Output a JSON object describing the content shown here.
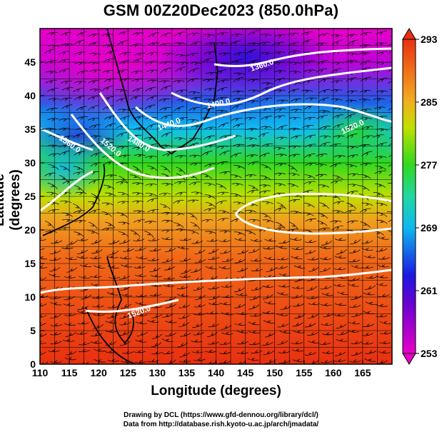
{
  "title": "GSM 00Z20Dec2023 (850.0hPa)",
  "xlabel": "Longitude (degrees)",
  "ylabel": "Latitude  (degrees)",
  "credit_line1": "Drawing by DCL (https://www.gfd-dennou.org/library/dcl/)",
  "credit_line2": "Data from http://database.rish.kyoto-u.ac.jp/arch/jmadata/",
  "x_ticks": [
    "110",
    "115",
    "120",
    "125",
    "130",
    "135",
    "140",
    "145",
    "150",
    "155",
    "160",
    "165"
  ],
  "y_ticks": [
    "0",
    "5",
    "10",
    "15",
    "20",
    "25",
    "30",
    "35",
    "40",
    "45"
  ],
  "colorbar_ticks": [
    "253",
    "261",
    "269",
    "277",
    "285",
    "293"
  ],
  "contour_labels": [
    "1360.0",
    "1400.0",
    "1440.0",
    "1480.0",
    "1520.0",
    "1560.0",
    "1520.0",
    "1520.0"
  ],
  "map": {
    "lon_range": [
      110,
      170
    ],
    "lat_range": [
      0,
      50
    ],
    "temperature_range_K": [
      253,
      293
    ],
    "level": "850.0hPa",
    "valid_time": "00Z20Dec2023"
  },
  "colors": {
    "cold": "#e800c8",
    "blue": "#1a1ae0",
    "cyan": "#10b8f0",
    "green": "#30d820",
    "yellow": "#e8e000",
    "orange": "#f08a10",
    "red": "#e83010",
    "contour": "#ffffff"
  }
}
